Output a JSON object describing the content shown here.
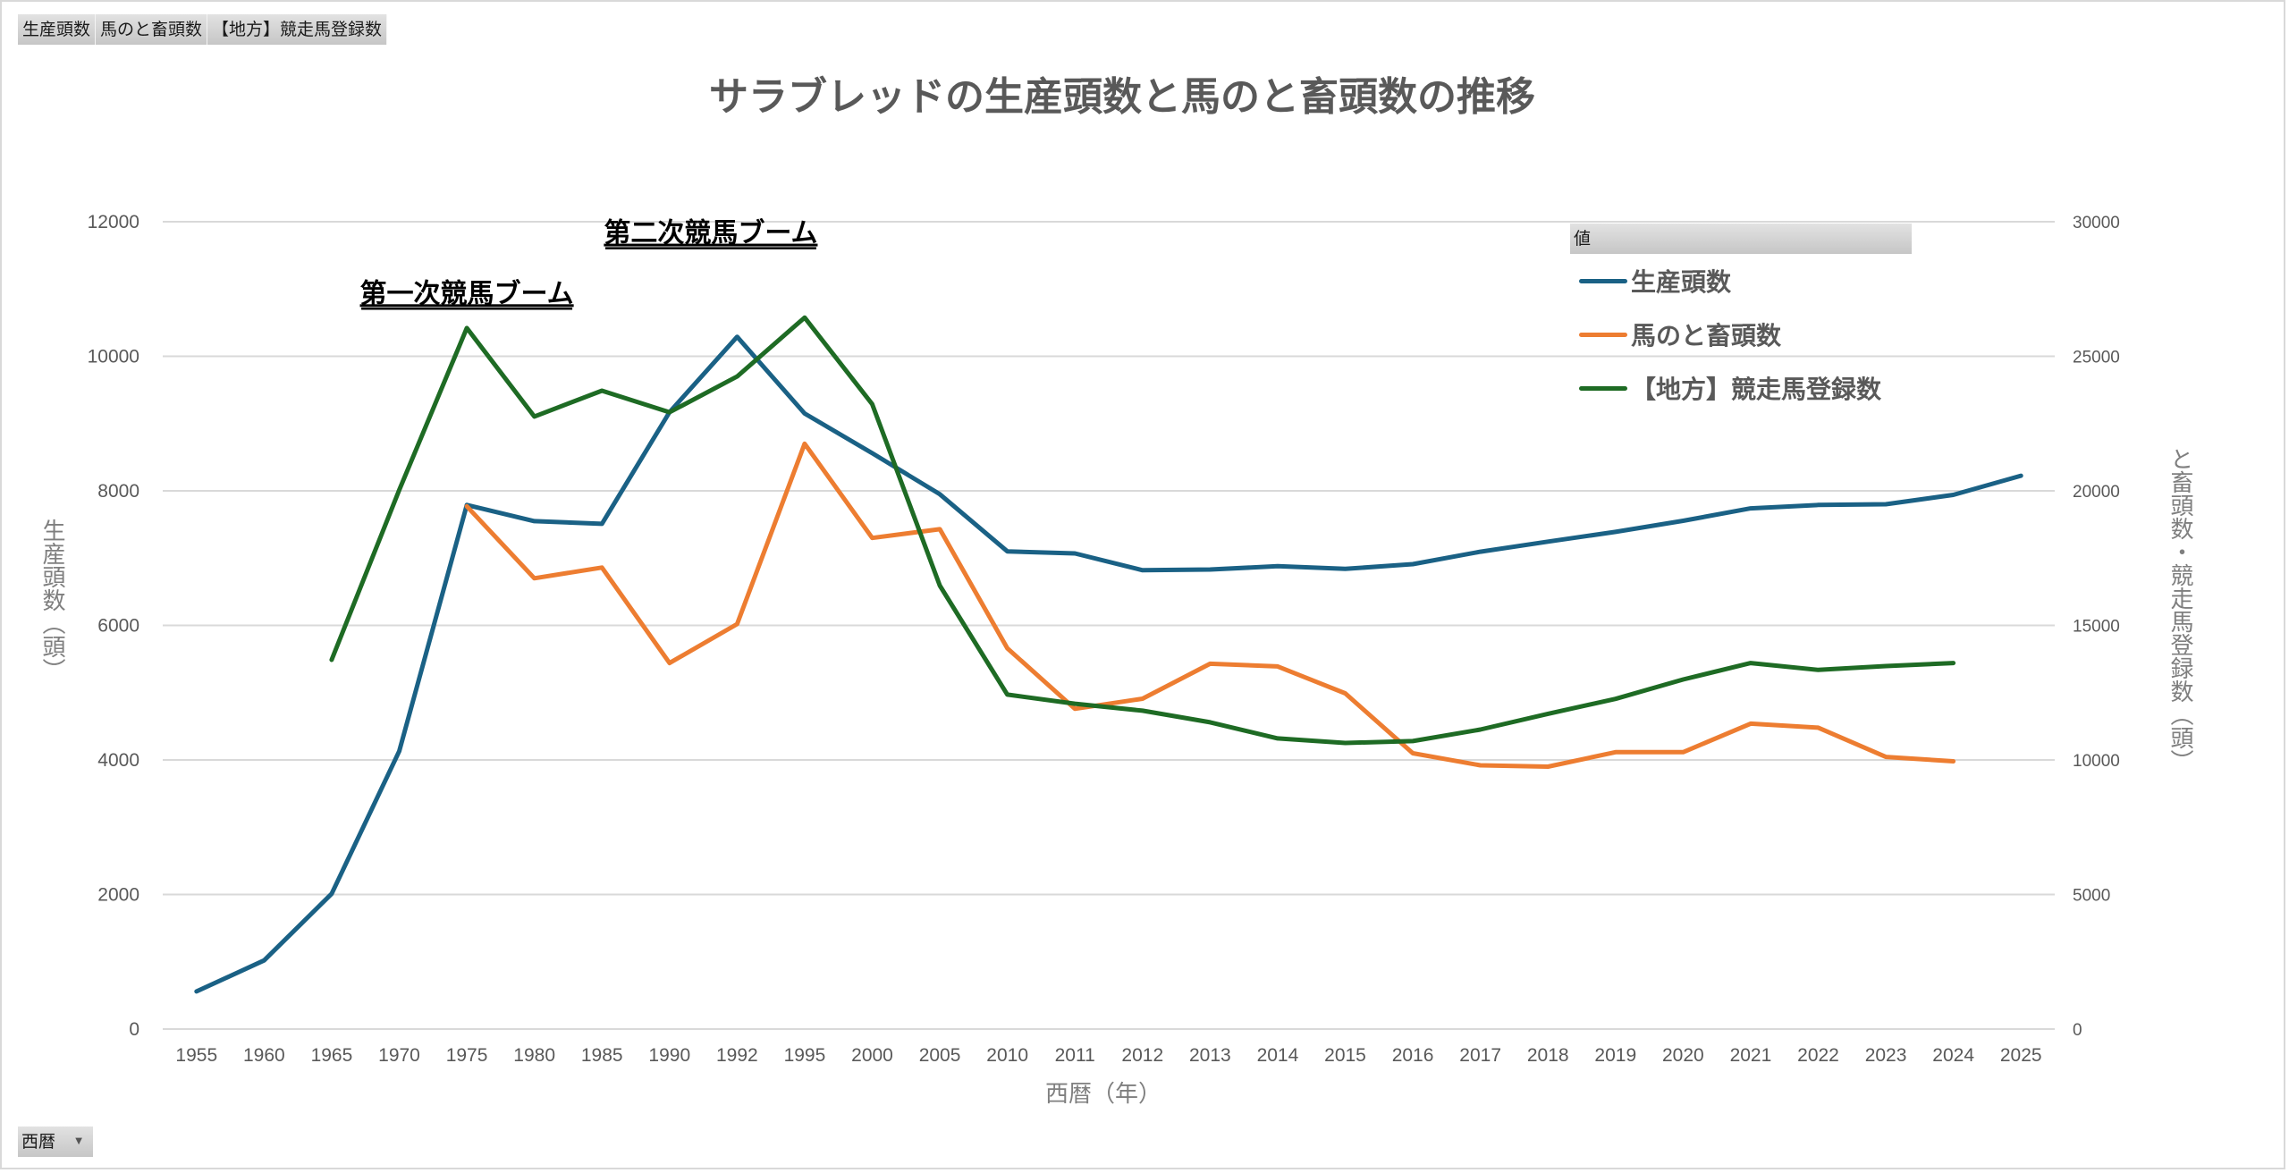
{
  "pivot_value_fields": [
    "生産頭数",
    "馬のと畜頭数",
    "【地方】競走馬登録数"
  ],
  "axis_field": {
    "label": "西暦",
    "icon": "dropdown-arrow-icon"
  },
  "legend_header": "値",
  "chart_data": {
    "type": "line",
    "title": "サラブレッドの生産頭数と馬のと畜頭数の推移",
    "xlabel": "西暦（年）",
    "ylabel": "生産頭数（頭）",
    "y2label": "と畜頭数・競走馬登録数（頭）",
    "ylim": [
      0,
      12000
    ],
    "y2lim": [
      0,
      30000
    ],
    "yticks": [
      0,
      2000,
      4000,
      6000,
      8000,
      10000,
      12000
    ],
    "y2ticks": [
      0,
      5000,
      10000,
      15000,
      20000,
      25000,
      30000
    ],
    "grid": true,
    "legend_position": "top-right",
    "categories": [
      "1955",
      "1960",
      "1965",
      "1970",
      "1975",
      "1980",
      "1985",
      "1990",
      "1992",
      "1995",
      "2000",
      "2005",
      "2010",
      "2011",
      "2012",
      "2013",
      "2014",
      "2015",
      "2016",
      "2017",
      "2018",
      "2019",
      "2020",
      "2021",
      "2022",
      "2023",
      "2024",
      "2025"
    ],
    "series": [
      {
        "name": "生産頭数",
        "axis": "left",
        "color": "#1a6185",
        "values": [
          560,
          1020,
          2010,
          4130,
          7790,
          7550,
          7510,
          9170,
          10290,
          9150,
          8560,
          7950,
          7100,
          7070,
          6820,
          6830,
          6880,
          6840,
          6910,
          7095,
          7245,
          7390,
          7555,
          7740,
          7790,
          7800,
          7940,
          8225
        ]
      },
      {
        "name": "馬のと畜頭数",
        "axis": "left",
        "color": "#ed7d31",
        "values": [
          null,
          null,
          null,
          null,
          7770,
          6700,
          6860,
          5440,
          6020,
          8700,
          7300,
          7430,
          5660,
          4760,
          4910,
          5430,
          5390,
          4990,
          4100,
          3920,
          3900,
          4115,
          4115,
          4540,
          4480,
          4045,
          3980,
          null
        ]
      },
      {
        "name": "【地方】競走馬登録数",
        "axis": "right",
        "color": "#1e6b24",
        "values": [
          null,
          null,
          13720,
          20030,
          26050,
          22760,
          23720,
          22920,
          24250,
          26440,
          23220,
          16480,
          12430,
          12090,
          11830,
          11400,
          10800,
          10630,
          10700,
          11130,
          11715,
          12270,
          12990,
          13600,
          13345,
          13490,
          13600,
          null
        ]
      }
    ],
    "annotations": [
      {
        "text": "第一次競馬ブーム",
        "at_category": "1975",
        "at_value_left": 10800
      },
      {
        "text": "第二次競馬ブーム",
        "at_category": "1995",
        "at_value_left": 11700
      }
    ]
  }
}
